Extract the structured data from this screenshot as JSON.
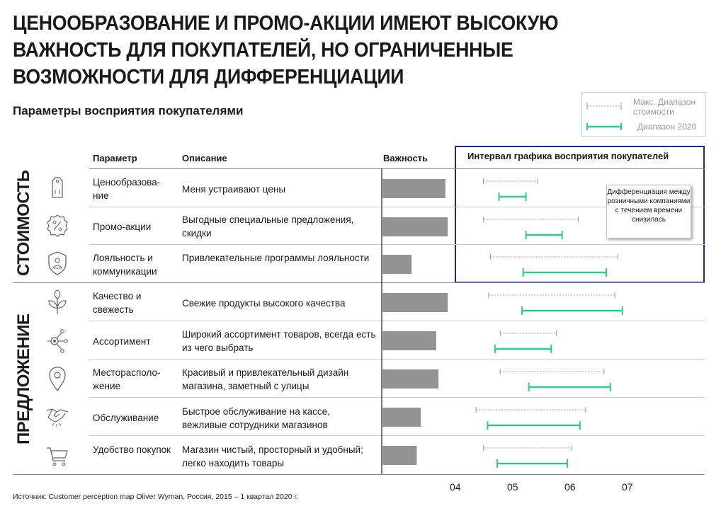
{
  "title": "ЦЕНООБРАЗОВАНИЕ И ПРОМО-АКЦИИ ИМЕЮТ ВЫСОКУЮ ВАЖНОСТЬ ДЛЯ ПОКУПАТЕЛЕЙ, НО ОГРАНИЧЕННЫЕ ВОЗМОЖНОСТИ ДЛЯ ДИФФЕРЕНЦИАЦИИ",
  "subtitle": "Параметры восприятия покупателями",
  "legend": {
    "max_range_label": "Макс. Диапазон стоимости",
    "range_2020_label": "Диапазон 2020"
  },
  "headers": {
    "param": "Параметр",
    "description": "Описание",
    "importance": "Важность",
    "interval": "Интервал графика восприятия покупателей"
  },
  "groups": {
    "cost": "СТОИМОСТЬ",
    "offer": "ПРЕДЛОЖЕНИЕ"
  },
  "callout": "Дифференциация между розничными компаниями с течением времени снизилась",
  "icons": [
    "price-tag-icon",
    "percent-badge-icon",
    "shield-user-icon",
    "leaf-icon",
    "network-icon",
    "map-pin-icon",
    "handshake-icon",
    "shopping-cart-icon"
  ],
  "rows": [
    {
      "param": "Ценообразова-ние",
      "description": "Меня устраивают цены"
    },
    {
      "param": "Промо-акции",
      "description": "Выгодные специальные предложения, скидки"
    },
    {
      "param": "Лояльность и коммуникации",
      "description": "Привлекательные программы лояльности"
    },
    {
      "param": "Качество и свежесть",
      "description": "Свежие продукты высокого качества"
    },
    {
      "param": "Ассортимент",
      "description": "Широкий ассортимент товаров, всегда есть из чего выбрать"
    },
    {
      "param": "Месторасполо-жение",
      "description": "Красивый и привлекательный дизайн магазина, заметный с улицы"
    },
    {
      "param": "Обслуживание",
      "description": "Быстрое обслуживание на кассе, вежливые сотрудники магазинов"
    },
    {
      "param": "Удобство покупок",
      "description": "Магазин чистый, просторный и удобный;  легко находить товары"
    }
  ],
  "source": "Источник: Customer perception map Oliver Wyman, Россия, 2015 – 1 квартал 2020 г.",
  "chart_data": {
    "type": "bar",
    "categories": [
      "Ценообразова-ние",
      "Промо-акции",
      "Лояльность и коммуникации",
      "Качество и свежесть",
      "Ассортимент",
      "Месторасполо-жение",
      "Обслуживание",
      "Удобство покупок"
    ],
    "importance": [
      1.11,
      1.15,
      0.52,
      1.15,
      0.95,
      0.99,
      0.68,
      0.61
    ],
    "max_range": [
      [
        4.49,
        5.43
      ],
      [
        4.49,
        6.14
      ],
      [
        4.61,
        6.83
      ],
      [
        4.58,
        6.78
      ],
      [
        4.78,
        5.76
      ],
      [
        4.78,
        6.59
      ],
      [
        4.36,
        6.27
      ],
      [
        4.49,
        6.03
      ]
    ],
    "range_2020": [
      [
        4.76,
        5.23
      ],
      [
        5.23,
        5.86
      ],
      [
        5.18,
        6.63
      ],
      [
        5.16,
        6.91
      ],
      [
        4.69,
        5.67
      ],
      [
        5.28,
        6.7
      ],
      [
        4.56,
        6.17
      ],
      [
        4.73,
        5.95
      ]
    ],
    "x_ticks": [
      "04",
      "05",
      "06",
      "07"
    ],
    "x_tick_values": [
      4,
      5,
      6,
      7
    ],
    "colors": {
      "importance": "#939393",
      "max_range": "#9a9a9a",
      "range_2020": "#2ecc8a",
      "frame": "#1c2a8c"
    }
  }
}
